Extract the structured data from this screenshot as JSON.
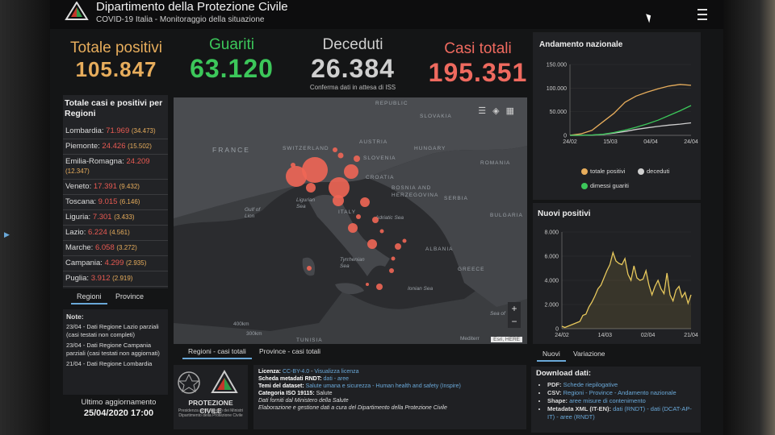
{
  "header": {
    "title": "Dipartimento della Protezione Civile",
    "subtitle": "COVID-19 Italia - Monitoraggio della situazione"
  },
  "kpis": {
    "positivi": {
      "label": "Totale positivi",
      "value": "105.847",
      "color": "#e7ad5c"
    },
    "guariti": {
      "label": "Guariti",
      "value": "63.120",
      "color": "#3cc75a"
    },
    "deceduti": {
      "label": "Deceduti",
      "value": "26.384",
      "note": "Conferma dati in attesa di ISS",
      "color": "#cfcfcf"
    },
    "casi": {
      "label": "Casi totali",
      "value": "195.351",
      "color": "#ef6a5f"
    }
  },
  "regions": {
    "title": "Totale casi e positivi per Regioni",
    "items": [
      {
        "name": "Lombardia:",
        "total": "71.969",
        "positive": "(34.473)"
      },
      {
        "name": "Piemonte:",
        "total": "24.426",
        "positive": "(15.502)"
      },
      {
        "name": "Emilia-Romagna:",
        "total": "24.209",
        "positive": "(12.347)"
      },
      {
        "name": "Veneto:",
        "total": "17.391",
        "positive": "(9.432)"
      },
      {
        "name": "Toscana:",
        "total": "9.015",
        "positive": "(6.146)"
      },
      {
        "name": "Liguria:",
        "total": "7.301",
        "positive": "(3.433)"
      },
      {
        "name": "Lazio:",
        "total": "6.224",
        "positive": "(4.561)"
      },
      {
        "name": "Marche:",
        "total": "6.058",
        "positive": "(3.272)"
      },
      {
        "name": "Campania:",
        "total": "4.299",
        "positive": "(2.935)"
      },
      {
        "name": "Puglia:",
        "total": "3.912",
        "positive": "(2.919)"
      }
    ],
    "tabs": [
      "Regioni",
      "Province"
    ]
  },
  "notes": {
    "title": "Note:",
    "lines": [
      "23/04 - Dati Regione Lazio parziali (casi testati non completi)",
      "23/04 - Dati Regione Campania parziali (casi testati non aggiornati)",
      "21/04 - Dati Regione Lombardia"
    ]
  },
  "update": {
    "label": "Ultimo aggiornamento",
    "date": "25/04/2020 17:00"
  },
  "map": {
    "labels": {
      "france": "FRANCE",
      "switzerland": "SWITZERLAND",
      "austria": "AUSTRIA",
      "slovenia": "SLOVENIA",
      "croatia": "CROATIA",
      "hungary": "HUNGARY",
      "slovakia": "SLOVAKIA",
      "republic": "REPUBLIC",
      "romania": "ROMANIA",
      "bosnia": "BOSNIA AND HERZEGOVINA",
      "serbia": "SERBIA",
      "bulgaria": "BULGARIA",
      "italy": "ITALY",
      "albania": "ALBANIA",
      "greece": "GREECE",
      "tunisia": "TUNISIA",
      "gulf": "Gulf of Lion",
      "ligurian": "Ligurian Sea",
      "adriatic": "Adriatic Sea",
      "tyrrhenian": "Tyrrhenian Sea",
      "ionian": "Ionian Sea",
      "sea_of": "Sea of",
      "mediterr": "Mediterr",
      "d400": "400km",
      "d300": "300km"
    },
    "attribution": "Esri, HERE",
    "zoom_in": "+",
    "zoom_out": "−",
    "tabs": [
      "Regioni - casi totali",
      "Province - casi totali"
    ]
  },
  "license": {
    "licenza_label": "Licenza:",
    "licenza_val": "CC-BY-4.0",
    "licenza_link": "Visualizza licenza",
    "scheda_label": "Scheda metadati RNDT:",
    "scheda_link": "dati - aree",
    "temi_label": "Temi del dataset:",
    "temi_val": "Salute umana e sicurezza - Human health and safety (Inspire)",
    "cat_label": "Categoria ISO 19115:",
    "cat_val": "Salute",
    "forniti": "Dati forniti dal Ministero della Salute",
    "elab": "Elaborazione e gestione dati a cura del Dipartimento della Protezione Civile"
  },
  "logo": {
    "name": "PROTEZIONE CIVILE",
    "caption": "Presidenza del Consiglio dei Ministri Dipartimento della Protezione Civile"
  },
  "chart_data": [
    {
      "type": "line",
      "title": "Andamento nazionale",
      "x_ticks": [
        "24/02",
        "15/03",
        "04/04",
        "24/04"
      ],
      "y_ticks": [
        "150.000",
        "100.000",
        "50.000",
        "0"
      ],
      "ylim": [
        0,
        150000
      ],
      "legend_position": "bottom",
      "series": [
        {
          "name": "totale positivi",
          "color": "#e7ad5c",
          "values": [
            200,
            3000,
            10600,
            28700,
            46600,
            70000,
            83000,
            91300,
            98300,
            104300,
            107700,
            105800
          ]
        },
        {
          "name": "deceduti",
          "color": "#cfcfcf",
          "values": [
            7,
            79,
            463,
            1800,
            4800,
            8200,
            12400,
            15900,
            18900,
            21600,
            23700,
            26400
          ]
        },
        {
          "name": "dimessi guariti",
          "color": "#3cc75a",
          "values": [
            1,
            50,
            600,
            2300,
            6000,
            11000,
            17000,
            24000,
            32000,
            42000,
            52000,
            63100
          ]
        }
      ]
    },
    {
      "type": "area",
      "title": "Nuovi positivi",
      "x_ticks": [
        "24/02",
        "14/03",
        "02/04",
        "21/04"
      ],
      "y_ticks": [
        "8.000",
        "6.000",
        "4.000",
        "2.000",
        "0"
      ],
      "ylim": [
        0,
        8000
      ],
      "tabs": [
        "Nuovi",
        "Variazione"
      ],
      "series": [
        {
          "name": "nuovi positivi",
          "color": "#e7c85c",
          "values": [
            200,
            100,
            200,
            300,
            400,
            500,
            600,
            1100,
            1200,
            1800,
            2200,
            2700,
            3300,
            3600,
            4200,
            4800,
            5300,
            6300,
            5600,
            5400,
            5300,
            5800,
            4500,
            4000,
            5200,
            4200,
            4000,
            4100,
            4800,
            3600,
            2800,
            3500,
            4000,
            3300,
            2900,
            4600,
            2800,
            2300,
            3200,
            3500,
            2600,
            3000,
            2100,
            2800
          ]
        }
      ]
    }
  ],
  "download": {
    "title": "Download dati:",
    "pdf_label": "PDF:",
    "pdf_link": "Schede riepilogative",
    "csv_label": "CSV:",
    "csv_links": "Regioni - Province - Andamento nazionale",
    "shape_label": "Shape:",
    "shape_link": "aree misure di contenimento",
    "xml_label": "Metadata XML (IT-EN):",
    "xml_links": "dati (RNDT) - dati (DCAT-AP-IT) - aree (RNDT)"
  }
}
